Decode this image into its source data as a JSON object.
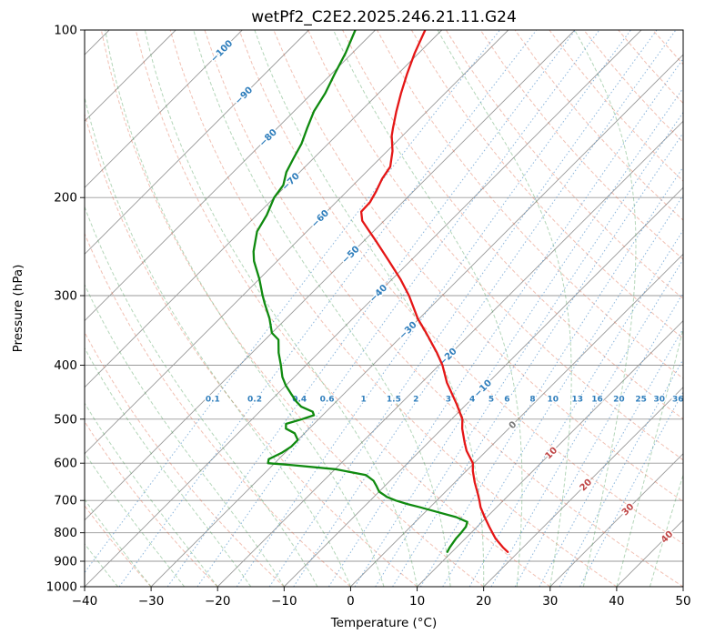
{
  "chart_data": {
    "type": "skewt_log_p",
    "title": "wetPf2_C2E2.2025.246.21.11.G24",
    "xlabel": "Temperature (°C)",
    "ylabel": "Pressure (hPa)",
    "xlim": [
      -40,
      50
    ],
    "pressure_lim": [
      1000,
      100
    ],
    "skew_deg": 45,
    "x_ticks": {
      "values": [
        -40,
        -30,
        -20,
        -10,
        0,
        10,
        20,
        30,
        40,
        50
      ],
      "labels": [
        "−40",
        "−30",
        "−20",
        "−10",
        "0",
        "10",
        "20",
        "30",
        "40",
        "50"
      ]
    },
    "p_ticks": {
      "values": [
        100,
        200,
        300,
        400,
        500,
        600,
        700,
        800,
        900,
        1000
      ],
      "labels": [
        "100",
        "200",
        "300",
        "400",
        "500",
        "600",
        "700",
        "800",
        "900",
        "1000"
      ]
    },
    "isobars": {
      "values": [
        100,
        200,
        300,
        400,
        500,
        600,
        700,
        800,
        900,
        1000
      ],
      "color": "#999999",
      "width": 0.9
    },
    "isotherms": {
      "start": -120,
      "end": 50,
      "step": 10,
      "color": "#999999",
      "width": 0.9
    },
    "dry_adiabats": {
      "start": -40,
      "end": 200,
      "step": 10,
      "color": "#dd6a4a",
      "opacity": 0.42,
      "dash": "4 2.5",
      "width": 1
    },
    "moist_adiabats": {
      "start": -40,
      "end": 45,
      "step": 5,
      "color": "#44984f",
      "opacity": 0.4,
      "dash": "4 2.5",
      "width": 1
    },
    "mixing_lines": {
      "values": [
        0.1,
        0.2,
        0.4,
        0.6,
        1,
        1.5,
        2,
        3,
        4,
        5,
        6,
        8,
        10,
        13,
        16,
        20,
        25,
        30,
        36
      ],
      "labels": [
        "0.1",
        "0.2",
        "0.4",
        "0.6",
        "1",
        "1.5",
        "2",
        "3",
        "4",
        "5",
        "6",
        "8",
        "10",
        "13",
        "16",
        "20",
        "25",
        "30",
        "36"
      ],
      "label_pressure": 465,
      "color": "#4b8ec9",
      "opacity": 0.65,
      "dash": "1.5 2.5",
      "width": 1,
      "label_color": "#2f7ebc"
    },
    "isotherm_labels": {
      "entries": [
        [
          -100,
          109,
          "−100"
        ],
        [
          -90,
          131,
          "−90"
        ],
        [
          -80,
          156,
          "−80"
        ],
        [
          -70,
          187,
          "−70"
        ],
        [
          -60,
          218,
          "−60"
        ],
        [
          -50,
          253,
          "−50"
        ],
        [
          -40,
          297,
          "−40"
        ],
        [
          -30,
          346,
          "−30"
        ],
        [
          -20,
          386,
          "−20"
        ],
        [
          -10,
          440,
          "−10"
        ],
        [
          0,
          512,
          "0"
        ],
        [
          10,
          575,
          "10"
        ],
        [
          20,
          656,
          "20"
        ],
        [
          30,
          726,
          "30"
        ],
        [
          40,
          813,
          "40"
        ]
      ],
      "negative_color": "#2f7ebc",
      "zero_color": "#777777",
      "positive_color": "#bf4545"
    },
    "series": [
      {
        "name": "temperature",
        "color": "#e51616",
        "width": 2.3,
        "points": [
          [
            866,
            18.4
          ],
          [
            850,
            17.0
          ],
          [
            820,
            14.6
          ],
          [
            800,
            13.2
          ],
          [
            780,
            11.8
          ],
          [
            750,
            9.7
          ],
          [
            720,
            7.6
          ],
          [
            700,
            6.4
          ],
          [
            680,
            5.1
          ],
          [
            650,
            3.0
          ],
          [
            620,
            1.0
          ],
          [
            600,
            -0.2
          ],
          [
            570,
            -3.0
          ],
          [
            550,
            -4.6
          ],
          [
            520,
            -7.0
          ],
          [
            500,
            -8.4
          ],
          [
            470,
            -11.5
          ],
          [
            450,
            -13.8
          ],
          [
            430,
            -16.2
          ],
          [
            400,
            -19.5
          ],
          [
            380,
            -22.2
          ],
          [
            350,
            -26.8
          ],
          [
            330,
            -30.2
          ],
          [
            300,
            -35.0
          ],
          [
            280,
            -38.8
          ],
          [
            260,
            -43.2
          ],
          [
            240,
            -48.0
          ],
          [
            230,
            -50.6
          ],
          [
            220,
            -53.3
          ],
          [
            212,
            -54.8
          ],
          [
            204,
            -54.9
          ],
          [
            195,
            -55.6
          ],
          [
            185,
            -56.6
          ],
          [
            176,
            -57.2
          ],
          [
            165,
            -59.2
          ],
          [
            155,
            -61.6
          ],
          [
            150,
            -62.6
          ],
          [
            140,
            -64.6
          ],
          [
            130,
            -66.6
          ],
          [
            120,
            -68.6
          ],
          [
            110,
            -70.6
          ],
          [
            100,
            -72.5
          ]
        ]
      },
      {
        "name": "dewpoint",
        "color": "#0f8a0f",
        "width": 2.3,
        "points": [
          [
            866,
            9.3
          ],
          [
            850,
            9.0
          ],
          [
            820,
            8.6
          ],
          [
            800,
            8.5
          ],
          [
            780,
            8.3
          ],
          [
            765,
            7.8
          ],
          [
            750,
            5.4
          ],
          [
            735,
            2.0
          ],
          [
            720,
            -1.5
          ],
          [
            710,
            -4.0
          ],
          [
            700,
            -6.2
          ],
          [
            690,
            -8.0
          ],
          [
            675,
            -10.0
          ],
          [
            660,
            -11.2
          ],
          [
            645,
            -12.5
          ],
          [
            630,
            -14.5
          ],
          [
            615,
            -20.0
          ],
          [
            605,
            -27.0
          ],
          [
            600,
            -31.0
          ],
          [
            590,
            -31.5
          ],
          [
            575,
            -30.5
          ],
          [
            560,
            -30.0
          ],
          [
            545,
            -30.0
          ],
          [
            530,
            -31.5
          ],
          [
            520,
            -33.5
          ],
          [
            510,
            -34.2
          ],
          [
            500,
            -32.5
          ],
          [
            492,
            -31.3
          ],
          [
            485,
            -32.0
          ],
          [
            475,
            -34.5
          ],
          [
            465,
            -36.0
          ],
          [
            450,
            -38.0
          ],
          [
            435,
            -40.0
          ],
          [
            420,
            -41.8
          ],
          [
            400,
            -43.8
          ],
          [
            380,
            -46.0
          ],
          [
            360,
            -48.0
          ],
          [
            350,
            -50.0
          ],
          [
            330,
            -52.5
          ],
          [
            310,
            -55.5
          ],
          [
            300,
            -57.0
          ],
          [
            280,
            -60.0
          ],
          [
            260,
            -63.5
          ],
          [
            250,
            -65.0
          ],
          [
            230,
            -67.5
          ],
          [
            215,
            -68.5
          ],
          [
            200,
            -70.0
          ],
          [
            190,
            -70.5
          ],
          [
            180,
            -72.0
          ],
          [
            170,
            -73.0
          ],
          [
            160,
            -74.0
          ],
          [
            150,
            -75.5
          ],
          [
            140,
            -77.0
          ],
          [
            130,
            -78.0
          ],
          [
            120,
            -79.5
          ],
          [
            110,
            -81.0
          ],
          [
            100,
            -83.0
          ]
        ]
      }
    ]
  }
}
